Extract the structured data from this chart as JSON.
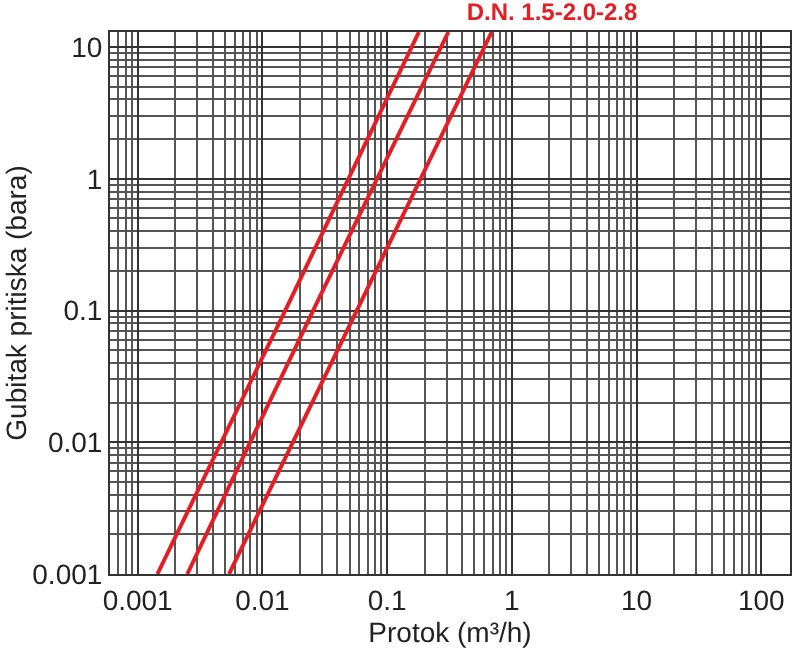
{
  "chart_data": {
    "type": "line",
    "title": "D.N. 1.5-2.0-2.8",
    "xlabel": "Protok (m³/h)",
    "ylabel": "Gubitak pritiska (bara)",
    "log": "xy",
    "grid": true,
    "marker": "none",
    "line_style": "solid",
    "xlim": [
      0.0006,
      170
    ],
    "xticks": [
      0.001,
      0.01,
      0.1,
      1,
      10,
      100
    ],
    "ylim": [
      0.001,
      13
    ],
    "yticks": [
      0.001,
      0.01,
      0.1,
      1,
      10
    ],
    "series": [
      {
        "color": "#e31e24",
        "x": [
          0.00144,
          0.016,
          0.18
        ],
        "values": [
          0.001,
          0.11,
          13
        ]
      },
      {
        "color": "#e31e24",
        "x": [
          0.0025,
          0.028,
          0.31
        ],
        "values": [
          0.001,
          0.12,
          13
        ]
      },
      {
        "color": "#e31e24",
        "x": [
          0.0054,
          0.06,
          0.69
        ],
        "values": [
          0.001,
          0.11,
          13
        ]
      }
    ]
  }
}
